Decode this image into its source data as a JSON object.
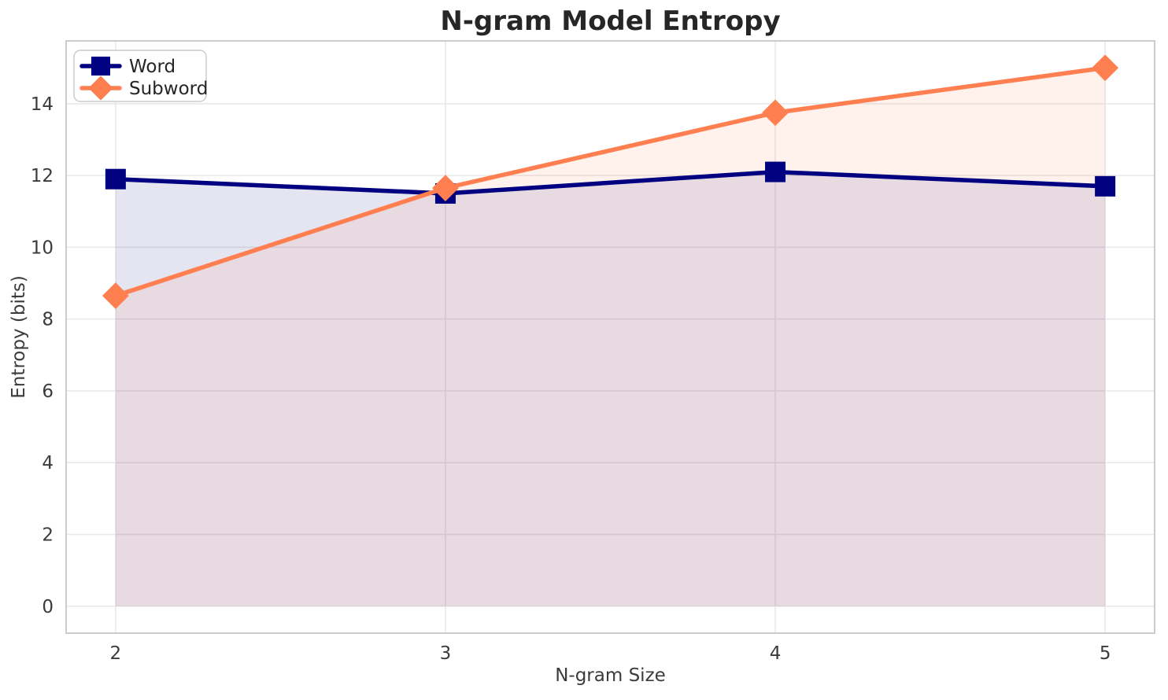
{
  "chart_data": {
    "type": "line",
    "title": "N-gram Model Entropy",
    "xlabel": "N-gram Size",
    "ylabel": "Entropy (bits)",
    "x": [
      2,
      3,
      4,
      5
    ],
    "xticks": [
      2,
      3,
      4,
      5
    ],
    "yticks": [
      0,
      2,
      4,
      6,
      8,
      10,
      12,
      14
    ],
    "xlim": [
      1.85,
      5.15
    ],
    "ylim": [
      -0.75,
      15.75
    ],
    "grid": true,
    "legend_position": "upper-left",
    "fill_baseline": 0,
    "series": [
      {
        "name": "Word",
        "values": [
          11.9,
          11.5,
          12.1,
          11.7
        ],
        "color": "#000080",
        "marker": "square",
        "fill_alpha": 0.1
      },
      {
        "name": "Subword",
        "values": [
          8.65,
          11.65,
          13.75,
          15.0
        ],
        "color": "#FF7F50",
        "marker": "diamond",
        "fill_alpha": 0.1
      }
    ],
    "colors": {
      "background": "#ffffff",
      "grid": "#e7e7e7",
      "spine": "#cccccc",
      "title_text": "#262626",
      "tick_text": "#3b3b3b",
      "legend_border": "#cccccc",
      "legend_background": "#ffffff",
      "legend_text": "#262626"
    }
  }
}
